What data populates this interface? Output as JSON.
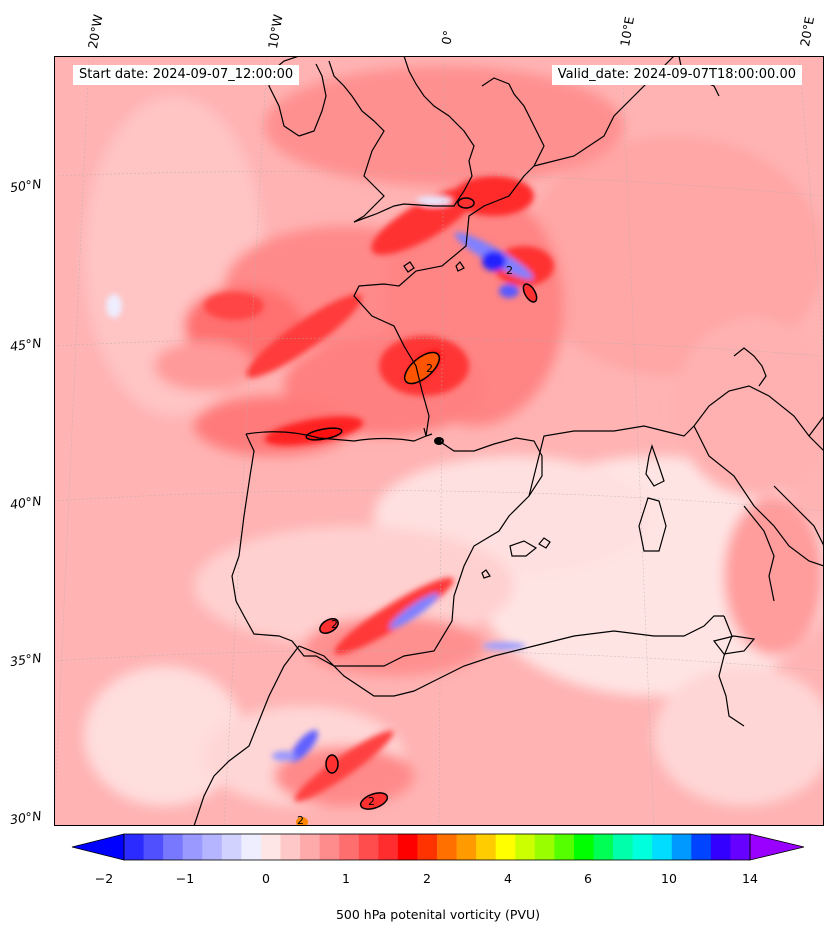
{
  "header": {
    "start_date": "Start date: 2024-09-07_12:00:00",
    "valid_date": "Valid_date: 2024-09-07T18:00:00.00"
  },
  "lon_labels": [
    "20°W",
    "10°W",
    "0°",
    "10°E",
    "20°E"
  ],
  "lat_labels": [
    "50°N",
    "45°N",
    "40°N",
    "35°N",
    "30°N"
  ],
  "contour_label": "2",
  "colorbar": {
    "label": "500 hPa potenital vorticity (PVU)",
    "ticks": [
      "−2",
      "−1",
      "0",
      "1",
      "2",
      "4",
      "6",
      "10",
      "14"
    ],
    "colors": [
      "#0000ff",
      "#2b2bff",
      "#5050ff",
      "#7878ff",
      "#9999ff",
      "#b4b4ff",
      "#d2d2ff",
      "#eeeeff",
      "#ffe6e6",
      "#ffc8c8",
      "#ffaaaa",
      "#ff8c8c",
      "#ff6e6e",
      "#ff4d4d",
      "#ff2d2d",
      "#ff0000",
      "#ff3300",
      "#ff7000",
      "#ff9a00",
      "#ffcc00",
      "#ffff00",
      "#ccff00",
      "#99ff00",
      "#55ff00",
      "#00ff00",
      "#00ff55",
      "#00ffaa",
      "#00ffdd",
      "#00ddff",
      "#0099ff",
      "#0044ff",
      "#3300ff",
      "#6600ff",
      "#9900ff"
    ]
  },
  "colors": {
    "background_pv": "#ffc6c6",
    "strong_pv": "#ff2222",
    "negative_pv": "#6f6fff",
    "coast": "#000000"
  }
}
